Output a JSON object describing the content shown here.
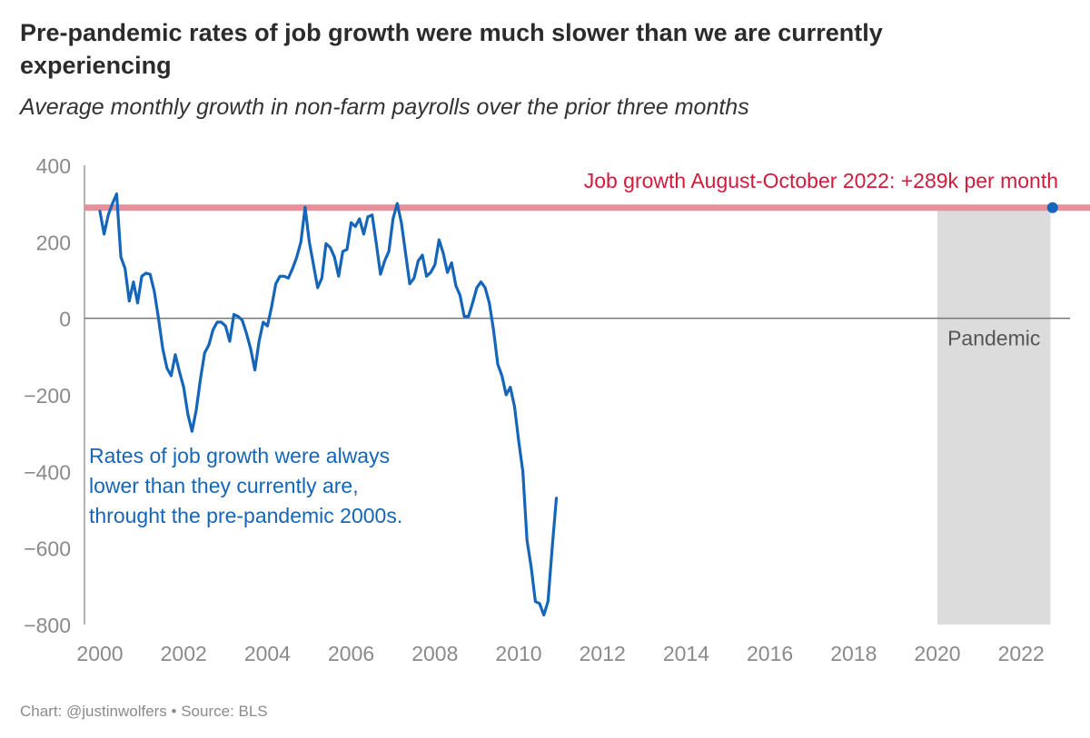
{
  "title": "Pre-pandemic rates of job growth were much slower than we are currently experiencing",
  "subtitle": "Average monthly growth in non-farm payrolls over the prior three months",
  "footer": "Chart: @justinwolfers • Source: BLS",
  "colors": {
    "line": "#1565b8",
    "reference": "#e88f9c",
    "reference_text": "#d21a3c",
    "pandemic_shade": "#dcdcdc",
    "axis_text": "#8a8a8a",
    "zero_line": "#777777"
  },
  "chart_data": {
    "type": "line",
    "title": "Pre-pandemic rates of job growth were much slower than we are currently experiencing",
    "subtitle": "Average monthly growth in non-farm payrolls over the prior three months",
    "xlabel": "",
    "ylabel": "",
    "xlim": [
      1999.7,
      2022.9
    ],
    "ylim": [
      -800,
      400
    ],
    "x_ticks": [
      2000,
      2002,
      2004,
      2006,
      2008,
      2010,
      2012,
      2014,
      2016,
      2018,
      2020,
      2022
    ],
    "x_tick_labels": [
      "2000",
      "2002",
      "2004",
      "2006",
      "2008",
      "2010",
      "2012",
      "2014",
      "2016",
      "2018",
      "2020",
      "2022"
    ],
    "y_ticks": [
      -800,
      -600,
      -400,
      -200,
      0,
      200,
      400
    ],
    "y_tick_labels": [
      "−800",
      "−600",
      "−400",
      "−200",
      "0",
      "200",
      "400"
    ],
    "grid": false,
    "series": [
      {
        "points": [
          [
            2000.0,
            280
          ],
          [
            2000.1,
            220
          ],
          [
            2000.2,
            270
          ],
          [
            2000.3,
            300
          ],
          [
            2000.4,
            325
          ],
          [
            2000.5,
            160
          ],
          [
            2000.6,
            130
          ],
          [
            2000.7,
            45
          ],
          [
            2000.8,
            95
          ],
          [
            2000.9,
            40
          ],
          [
            2001.0,
            110
          ],
          [
            2001.1,
            118
          ],
          [
            2001.2,
            115
          ],
          [
            2001.3,
            70
          ],
          [
            2001.4,
            0
          ],
          [
            2001.5,
            -80
          ],
          [
            2001.6,
            -130
          ],
          [
            2001.7,
            -150
          ],
          [
            2001.8,
            -95
          ],
          [
            2001.9,
            -140
          ],
          [
            2002.0,
            -180
          ],
          [
            2002.1,
            -250
          ],
          [
            2002.2,
            -295
          ],
          [
            2002.3,
            -240
          ],
          [
            2002.4,
            -160
          ],
          [
            2002.5,
            -90
          ],
          [
            2002.6,
            -70
          ],
          [
            2002.7,
            -30
          ],
          [
            2002.8,
            -10
          ],
          [
            2002.9,
            -10
          ],
          [
            2003.0,
            -20
          ],
          [
            2003.1,
            -60
          ],
          [
            2003.2,
            10
          ],
          [
            2003.3,
            5
          ],
          [
            2003.4,
            -5
          ],
          [
            2003.5,
            -40
          ],
          [
            2003.6,
            -80
          ],
          [
            2003.7,
            -135
          ],
          [
            2003.8,
            -60
          ],
          [
            2003.9,
            -10
          ],
          [
            2004.0,
            -20
          ],
          [
            2004.1,
            30
          ],
          [
            2004.2,
            90
          ],
          [
            2004.3,
            110
          ],
          [
            2004.4,
            110
          ],
          [
            2004.5,
            105
          ],
          [
            2004.6,
            130
          ],
          [
            2004.7,
            160
          ],
          [
            2004.8,
            200
          ],
          [
            2004.9,
            290
          ],
          [
            2005.0,
            200
          ],
          [
            2005.1,
            140
          ],
          [
            2005.2,
            80
          ],
          [
            2005.3,
            105
          ],
          [
            2005.4,
            195
          ],
          [
            2005.5,
            185
          ],
          [
            2005.6,
            160
          ],
          [
            2005.7,
            110
          ],
          [
            2005.8,
            175
          ],
          [
            2005.9,
            180
          ],
          [
            2006.0,
            250
          ],
          [
            2006.1,
            240
          ],
          [
            2006.2,
            260
          ],
          [
            2006.3,
            220
          ],
          [
            2006.4,
            265
          ],
          [
            2006.5,
            270
          ],
          [
            2006.6,
            195
          ],
          [
            2006.7,
            115
          ],
          [
            2006.8,
            150
          ],
          [
            2006.9,
            175
          ],
          [
            2007.0,
            260
          ],
          [
            2007.1,
            300
          ],
          [
            2007.2,
            250
          ],
          [
            2007.3,
            170
          ],
          [
            2007.4,
            90
          ],
          [
            2007.5,
            105
          ],
          [
            2007.6,
            150
          ],
          [
            2007.7,
            165
          ],
          [
            2007.8,
            110
          ],
          [
            2007.9,
            120
          ],
          [
            2008.0,
            140
          ],
          [
            2008.1,
            205
          ],
          [
            2008.2,
            170
          ],
          [
            2008.3,
            120
          ],
          [
            2008.4,
            145
          ],
          [
            2008.5,
            85
          ],
          [
            2008.6,
            60
          ],
          [
            2008.7,
            5
          ],
          [
            2008.8,
            5
          ],
          [
            2008.9,
            40
          ],
          [
            2009.0,
            80
          ],
          [
            2009.1,
            95
          ],
          [
            2009.2,
            80
          ],
          [
            2009.3,
            40
          ],
          [
            2009.4,
            -30
          ],
          [
            2009.5,
            -120
          ],
          [
            2009.6,
            -150
          ],
          [
            2009.7,
            -200
          ],
          [
            2009.8,
            -180
          ],
          [
            2009.9,
            -230
          ],
          [
            2010.0,
            -320
          ],
          [
            2010.1,
            -400
          ],
          [
            2010.2,
            -580
          ],
          [
            2010.3,
            -650
          ],
          [
            2010.4,
            -740
          ],
          [
            2010.5,
            -745
          ],
          [
            2010.6,
            -775
          ],
          [
            2010.7,
            -740
          ],
          [
            2010.8,
            -600
          ],
          [
            2010.9,
            -470
          ]
        ]
      }
    ],
    "reference_line": {
      "value": 289,
      "label": "Job growth August-October 2022: +289k per month",
      "marker_x": 2022.75
    },
    "shaded_region": {
      "x_start": 2020.0,
      "x_end": 2022.7,
      "label": "Pandemic"
    },
    "annotations": [
      {
        "lines": [
          "Rates of job growth were always",
          "lower than they currently are,",
          "throught the pre-pandemic 2000s."
        ]
      }
    ]
  }
}
